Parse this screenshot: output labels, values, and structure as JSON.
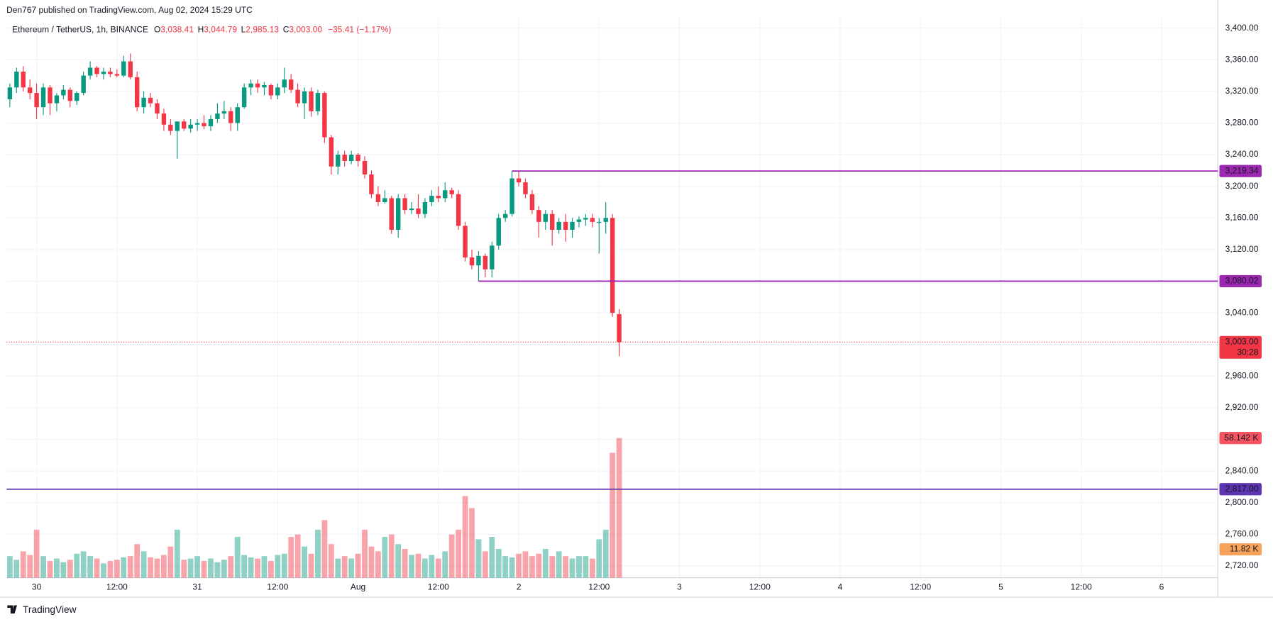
{
  "chart_data": {
    "type": "candlestick",
    "publisher": "Den767 published on TradingView.com, Aug 02, 2024 15:29 UTC",
    "symbol": "Ethereum / TetherUS, 1h, BINANCE",
    "ohlc_keys": [
      "O",
      "H",
      "L",
      "C"
    ],
    "ohlc_labels": [
      "3,038.41",
      "3,044.79",
      "2,985.13",
      "3,003.00"
    ],
    "change_label": "−35.41 (−1.17%)",
    "brand": "TradingView",
    "up_color": "#089981",
    "down_color": "#f23645",
    "open": [
      3310,
      3325,
      3345,
      3325,
      3318,
      3300,
      3325,
      3305,
      3315,
      3322,
      3308,
      3318,
      3340,
      3350,
      3342,
      3345,
      3342,
      3340,
      3358,
      3338,
      3300,
      3312,
      3305,
      3292,
      3278,
      3270,
      3282,
      3273,
      3278,
      3280,
      3276,
      3285,
      3292,
      3295,
      3280,
      3300,
      3325,
      3330,
      3325,
      3328,
      3315,
      3325,
      3335,
      3322,
      3305,
      3320,
      3295,
      3318,
      3262,
      3225,
      3240,
      3232,
      3240,
      3232,
      3215,
      3190,
      3180,
      3185,
      3145,
      3185,
      3170,
      3172,
      3165,
      3180,
      3188,
      3185,
      3195,
      3190,
      3150,
      3110,
      3100,
      3112,
      3095,
      3125,
      3160,
      3165,
      3210,
      3205,
      3190,
      3170,
      3155,
      3165,
      3145,
      3155,
      3145,
      3155,
      3158,
      3160,
      3155,
      3155,
      3160,
      3038.41
    ],
    "high": [
      3330,
      3350,
      3352,
      3335,
      3330,
      3330,
      3328,
      3318,
      3328,
      3325,
      3320,
      3345,
      3358,
      3352,
      3350,
      3350,
      3348,
      3365,
      3368,
      3345,
      3320,
      3318,
      3310,
      3298,
      3285,
      3282,
      3285,
      3285,
      3285,
      3290,
      3290,
      3305,
      3308,
      3300,
      3305,
      3330,
      3335,
      3335,
      3332,
      3330,
      3330,
      3350,
      3342,
      3330,
      3325,
      3325,
      3322,
      3320,
      3265,
      3245,
      3245,
      3245,
      3242,
      3238,
      3220,
      3200,
      3195,
      3188,
      3190,
      3190,
      3180,
      3190,
      3185,
      3195,
      3200,
      3205,
      3198,
      3195,
      3155,
      3120,
      3118,
      3115,
      3130,
      3165,
      3170,
      3219.34,
      3219,
      3210,
      3195,
      3175,
      3170,
      3170,
      3160,
      3165,
      3160,
      3162,
      3165,
      3165,
      3160,
      3180,
      3165,
      3044.79
    ],
    "low": [
      3300,
      3318,
      3320,
      3310,
      3285,
      3290,
      3290,
      3295,
      3310,
      3300,
      3303,
      3315,
      3335,
      3338,
      3335,
      3338,
      3338,
      3338,
      3335,
      3295,
      3292,
      3300,
      3285,
      3270,
      3265,
      3235,
      3270,
      3268,
      3270,
      3272,
      3270,
      3280,
      3285,
      3270,
      3270,
      3298,
      3315,
      3318,
      3315,
      3310,
      3310,
      3318,
      3318,
      3300,
      3285,
      3288,
      3290,
      3255,
      3215,
      3215,
      3225,
      3228,
      3225,
      3210,
      3185,
      3175,
      3178,
      3140,
      3135,
      3165,
      3165,
      3160,
      3160,
      3175,
      3180,
      3180,
      3185,
      3145,
      3105,
      3095,
      3080.02,
      3085,
      3085,
      3120,
      3155,
      3162,
      3200,
      3185,
      3165,
      3135,
      3145,
      3125,
      3140,
      3130,
      3135,
      3148,
      3150,
      3148,
      3115,
      3140,
      3035,
      2985.13
    ],
    "close": [
      3325,
      3345,
      3325,
      3318,
      3300,
      3325,
      3305,
      3315,
      3322,
      3308,
      3318,
      3340,
      3350,
      3342,
      3345,
      3342,
      3340,
      3358,
      3338,
      3300,
      3312,
      3305,
      3292,
      3278,
      3270,
      3282,
      3273,
      3278,
      3280,
      3276,
      3285,
      3292,
      3295,
      3280,
      3300,
      3325,
      3330,
      3325,
      3328,
      3315,
      3325,
      3335,
      3322,
      3305,
      3320,
      3295,
      3318,
      3262,
      3225,
      3240,
      3232,
      3240,
      3232,
      3215,
      3190,
      3180,
      3185,
      3145,
      3185,
      3170,
      3172,
      3165,
      3180,
      3188,
      3185,
      3195,
      3190,
      3150,
      3110,
      3100,
      3112,
      3095,
      3125,
      3160,
      3165,
      3210,
      3205,
      3190,
      3170,
      3155,
      3165,
      3145,
      3155,
      3145,
      3155,
      3158,
      3160,
      3155,
      3155,
      3160,
      3040,
      3003.0
    ],
    "volume": [
      9000,
      7500,
      11000,
      9500,
      20000,
      9000,
      7000,
      8000,
      6500,
      7500,
      10000,
      11000,
      9000,
      8000,
      6000,
      7000,
      7500,
      8500,
      9000,
      14000,
      11000,
      8500,
      8000,
      9500,
      13000,
      20000,
      7500,
      8000,
      9000,
      7000,
      8000,
      6500,
      7500,
      9000,
      17000,
      9500,
      8500,
      8000,
      9000,
      7000,
      9500,
      10000,
      17000,
      18000,
      13000,
      10000,
      20000,
      24000,
      14000,
      8000,
      9000,
      8000,
      10000,
      20000,
      13000,
      11000,
      17000,
      18000,
      14000,
      12000,
      9500,
      10000,
      8000,
      9500,
      8000,
      11000,
      18000,
      20000,
      34000,
      29000,
      16000,
      11000,
      17000,
      12000,
      9000,
      8500,
      10000,
      11000,
      9000,
      10000,
      12000,
      9000,
      11000,
      9000,
      8000,
      9000,
      9000,
      8000,
      16000,
      20000,
      52000,
      58142
    ],
    "volume_label": "58.142 K",
    "volume_ma": {
      "value": 11820,
      "label": "11.82 K",
      "color": "#f7a35c"
    },
    "vlim": [
      0,
      233000
    ],
    "last_price_label": "3,003.00",
    "countdown": "30:28",
    "levels": [
      {
        "value": 3219.34,
        "label": "3,219.34",
        "color": "#9c27b0"
      },
      {
        "value": 3080.02,
        "label": "3,080.02",
        "color": "#9c27b0"
      },
      {
        "value": 2817,
        "label": "2,817.00",
        "color": "#5e35b1"
      }
    ],
    "ylim": [
      2705,
      3413
    ],
    "yticks": [
      {
        "value": 2720,
        "label": "2,720.00"
      },
      {
        "value": 2760,
        "label": "2,760.00"
      },
      {
        "value": 2800,
        "label": "2,800.00"
      },
      {
        "value": 2840,
        "label": "2,840.00"
      },
      {
        "value": 2880,
        "label": "2,880.00"
      },
      {
        "value": 2920,
        "label": "2,920.00"
      },
      {
        "value": 2960,
        "label": "2,960.00"
      },
      {
        "value": 3000,
        "label": "3,000.00"
      },
      {
        "value": 3040,
        "label": "3,040.00"
      },
      {
        "value": 3080,
        "label": "3,080.00"
      },
      {
        "value": 3120,
        "label": "3,120.00"
      },
      {
        "value": 3160,
        "label": "3,160.00"
      },
      {
        "value": 3200,
        "label": "3,200.00"
      },
      {
        "value": 3240,
        "label": "3,240.00"
      },
      {
        "value": 3280,
        "label": "3,280.00"
      },
      {
        "value": 3320,
        "label": "3,320.00"
      },
      {
        "value": 3360,
        "label": "3,360.00"
      },
      {
        "value": 3400,
        "label": "3,400.00"
      }
    ],
    "xlim": [
      -0.5,
      180.4
    ],
    "xticks": [
      {
        "value": 4,
        "label": "30"
      },
      {
        "value": 16,
        "label": "12:00"
      },
      {
        "value": 28,
        "label": "31"
      },
      {
        "value": 40,
        "label": "12:00"
      },
      {
        "value": 52,
        "label": "Aug"
      },
      {
        "value": 64,
        "label": "12:00"
      },
      {
        "value": 76,
        "label": "2"
      },
      {
        "value": 88,
        "label": "12:00"
      },
      {
        "value": 100,
        "label": "3"
      },
      {
        "value": 112,
        "label": "12:00"
      },
      {
        "value": 124,
        "label": "4"
      },
      {
        "value": 136,
        "label": "12:00"
      },
      {
        "value": 148,
        "label": "5"
      },
      {
        "value": 160,
        "label": "12:00"
      },
      {
        "value": 172,
        "label": "6"
      }
    ],
    "grid": true
  }
}
